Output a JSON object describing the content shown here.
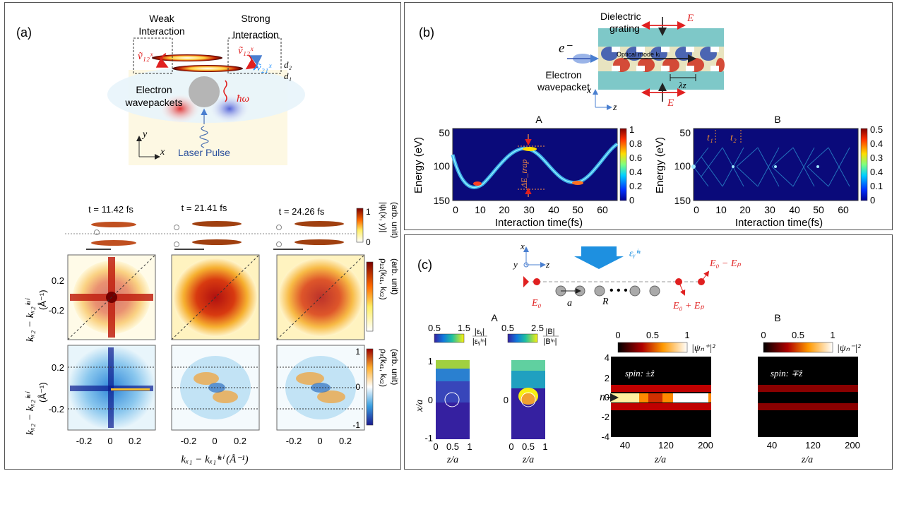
{
  "panel_a": {
    "label": "(a)",
    "weak_interaction": [
      "Weak",
      "Interaction"
    ],
    "strong_interaction": [
      "Strong",
      "Interaction"
    ],
    "v12": "ṽ₁₂ˣ",
    "v12b": "ṽ₁₂ˣ",
    "v21": "ṽ₂₁ˣ",
    "d2": "d₂",
    "d1": "d₁",
    "electron_wavepackets": [
      "Electron",
      "wavepackets"
    ],
    "hbar_omega": "ħω",
    "laser_pulse": "Laser Pulse",
    "axis_y": "y",
    "axis_x": "x",
    "times": [
      "t = 11.42 fs",
      "t = 21.41 fs",
      "t = 24.26 fs"
    ],
    "cb1_ticks": [
      "1",
      "0"
    ],
    "cb1_label": [
      "|ψᵢ(x, y)|",
      "(arb. unit)"
    ],
    "cb2_label": [
      "ρ₁₂(kₓ₁, kₓ₂)",
      "(arb. unit)"
    ],
    "cb3_ticks": [
      "1",
      "0",
      "-1"
    ],
    "cb3_label": [
      "ρₓ(kₓ₁, kₓ₂)",
      "(arb. unit)"
    ],
    "ylabel_top": [
      "kₓ₂ − kₓ₂ⁱⁿⁱ",
      "(Å⁻¹)"
    ],
    "ylabel_bottom": [
      "kₓ₂ − kₓ₂ⁱⁿⁱ",
      "(Å⁻¹)"
    ],
    "yticks": [
      "0.2",
      "-0.2"
    ],
    "xticks": [
      "-0.2",
      "0",
      "0.2"
    ],
    "xlabel": "kₓ₁ − kₓ₁ⁱⁿⁱ (Å⁻¹)"
  },
  "panel_b": {
    "label": "(b)",
    "dielectric": [
      "Dielectric",
      "grating"
    ],
    "E_top": "E",
    "E_bottom": "E",
    "electron": "e⁻",
    "electron_wavepacket": [
      "Electron",
      "wavepacket"
    ],
    "optical_mode": "Optical mode kᵢ",
    "lambda_z": "λz",
    "axis_x": "x",
    "axis_z": "z",
    "plot_a_title": "A",
    "plot_b_title": "B",
    "ylabel": "Energy (eV)",
    "xlabel": "Interaction time(fs)",
    "yticks": [
      "50",
      "100",
      "150"
    ],
    "xticks": [
      "0",
      "10",
      "20",
      "30",
      "40",
      "50",
      "60"
    ],
    "cb_a_ticks": [
      "1",
      "0.8",
      "0.6",
      "0.4",
      "0.2",
      "0"
    ],
    "cb_b_ticks": [
      "0.5",
      "0.4",
      "0.3",
      "0.4",
      "0.1",
      "0"
    ],
    "delta_e": "ΔE_trap",
    "t1": "t₁",
    "t2": "t₂"
  },
  "panel_c": {
    "label": "(c)",
    "axis_x": "x",
    "axis_y": "y",
    "axis_z": "z",
    "eps_in": "εᵧⁱⁿ",
    "E0": "E₀",
    "E0_minus": "E₀ − Eₚ",
    "E0_plus": "E₀ + Eₚ",
    "a": "a",
    "R": "R",
    "plot_a_title": "A",
    "plot_b_title": "B",
    "cb1_ticks": [
      "0.5",
      "1.5"
    ],
    "cb1_label": [
      "|εᵧ|",
      "|εᵧⁱⁿ|"
    ],
    "cb2_ticks": [
      "0.5",
      "2.5"
    ],
    "cb2_label": [
      "|B|",
      "|Bⁱⁿ|"
    ],
    "ylabel_a": "x/a",
    "xlabel_a": "z/a",
    "a_yticks": [
      "1",
      "0",
      "-1"
    ],
    "a_xticks": [
      "0",
      "0.5",
      "1"
    ],
    "cb3_ticks": [
      "0",
      "0.5",
      "1"
    ],
    "cb3_label": "|ψₙ⁺|²",
    "cb4_ticks": [
      "0",
      "0.5",
      "1"
    ],
    "cb4_label": "|ψₙ⁻|²",
    "spin_plus": "spin: ±ẑ",
    "spin_minus": "spin: ∓ẑ",
    "ylabel_b": "n",
    "xlabel_b": "z/a",
    "b_yticks": [
      "4",
      "2",
      "0",
      "-2",
      "-4"
    ],
    "b_xticks": [
      "40",
      "120",
      "200"
    ]
  }
}
